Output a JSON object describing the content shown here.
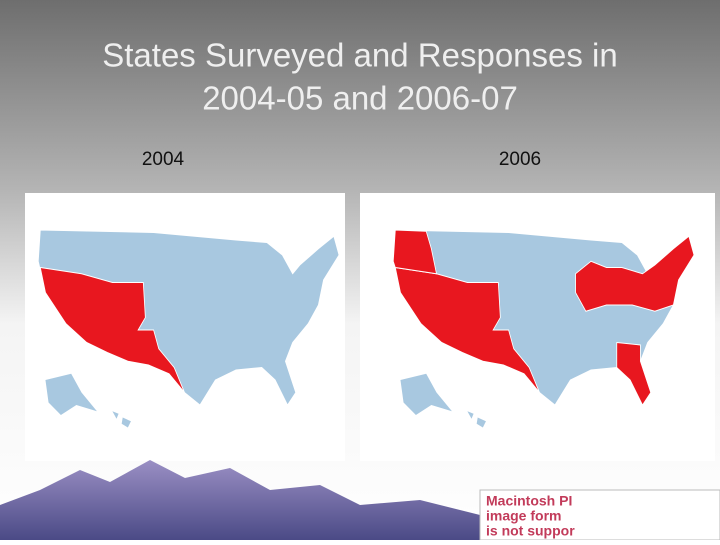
{
  "title": "States Surveyed and Responses in 2004-05 and 2006-07",
  "panels": [
    {
      "label": "2004"
    },
    {
      "label": "2006"
    }
  ],
  "notice": [
    "Macintosh PI",
    "image form",
    "is not suppor"
  ]
}
